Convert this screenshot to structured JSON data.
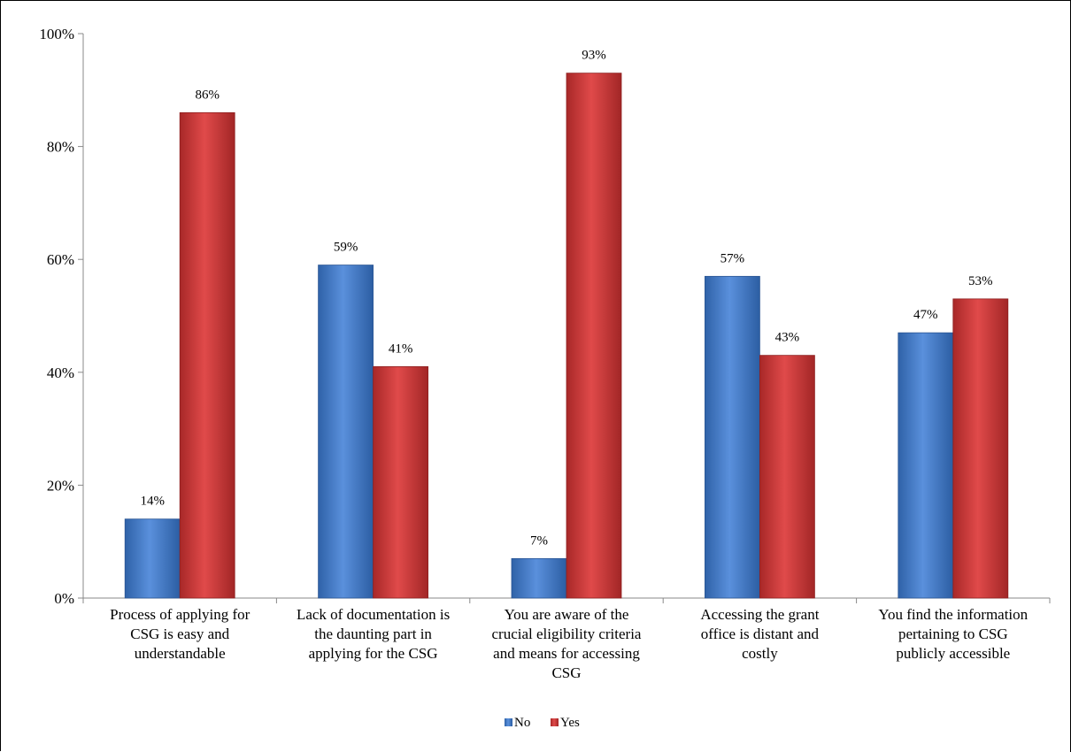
{
  "chart_data": {
    "type": "bar",
    "title": "",
    "xlabel": "",
    "ylabel": "",
    "ylim": [
      0,
      100
    ],
    "y_ticks": [
      "0%",
      "20%",
      "40%",
      "60%",
      "80%",
      "100%"
    ],
    "y_tick_values": [
      0,
      20,
      40,
      60,
      80,
      100
    ],
    "grid": false,
    "legend_position": "bottom",
    "categories": [
      [
        "Process of applying for",
        "CSG is easy and",
        "understandable"
      ],
      [
        "Lack of documentation is",
        "the daunting part in",
        "applying for the CSG"
      ],
      [
        "You are aware of the",
        "crucial eligibility criteria",
        "and means for accessing",
        "CSG"
      ],
      [
        "Accessing the grant",
        "office is distant and",
        "costly"
      ],
      [
        "You find the information",
        "pertaining to CSG",
        "publicly accessible"
      ]
    ],
    "series": [
      {
        "name": "No",
        "color": "#4a7fcb",
        "values": [
          14,
          59,
          7,
          57,
          47
        ],
        "labels": [
          "14%",
          "59%",
          "7%",
          "57%",
          "47%"
        ]
      },
      {
        "name": "Yes",
        "color": "#c83a3a",
        "values": [
          86,
          41,
          93,
          43,
          53
        ],
        "labels": [
          "86%",
          "41%",
          "93%",
          "43%",
          "53%"
        ]
      }
    ]
  }
}
